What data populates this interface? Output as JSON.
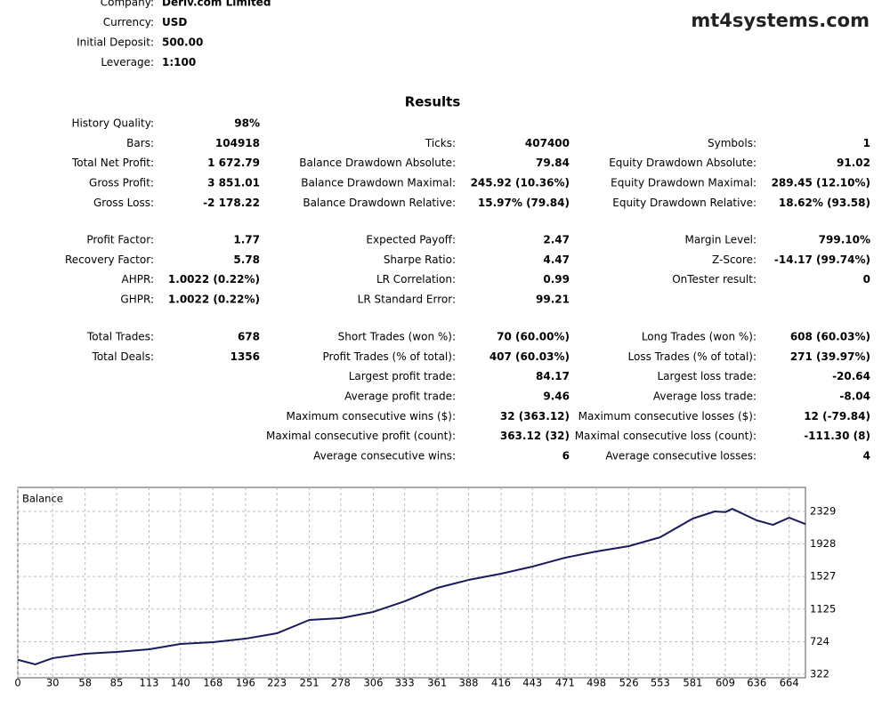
{
  "watermark": "mt4systems.com",
  "header": {
    "fields": [
      {
        "label": "Company:",
        "value": "Deriv.com Limited"
      },
      {
        "label": "Currency:",
        "value": "USD"
      },
      {
        "label": "Initial Deposit:",
        "value": "500.00"
      },
      {
        "label": "Leverage:",
        "value": "1:100"
      }
    ]
  },
  "results": {
    "title": "Results",
    "sections": [
      [
        [
          {
            "label": "History Quality:",
            "value": "98%"
          },
          null,
          null
        ],
        [
          {
            "label": "Bars:",
            "value": "104918"
          },
          {
            "label": "Ticks:",
            "value": "407400"
          },
          {
            "label": "Symbols:",
            "value": "1"
          }
        ],
        [
          {
            "label": "Total Net Profit:",
            "value": "1 672.79"
          },
          {
            "label": "Balance Drawdown Absolute:",
            "value": "79.84"
          },
          {
            "label": "Equity Drawdown Absolute:",
            "value": "91.02"
          }
        ],
        [
          {
            "label": "Gross Profit:",
            "value": "3 851.01"
          },
          {
            "label": "Balance Drawdown Maximal:",
            "value": "245.92 (10.36%)"
          },
          {
            "label": "Equity Drawdown Maximal:",
            "value": "289.45 (12.10%)"
          }
        ],
        [
          {
            "label": "Gross Loss:",
            "value": "-2 178.22"
          },
          {
            "label": "Balance Drawdown Relative:",
            "value": "15.97% (79.84)"
          },
          {
            "label": "Equity Drawdown Relative:",
            "value": "18.62% (93.58)"
          }
        ]
      ],
      [
        [
          {
            "label": "Profit Factor:",
            "value": "1.77"
          },
          {
            "label": "Expected Payoff:",
            "value": "2.47"
          },
          {
            "label": "Margin Level:",
            "value": "799.10%"
          }
        ],
        [
          {
            "label": "Recovery Factor:",
            "value": "5.78"
          },
          {
            "label": "Sharpe Ratio:",
            "value": "4.47"
          },
          {
            "label": "Z-Score:",
            "value": "-14.17 (99.74%)"
          }
        ],
        [
          {
            "label": "AHPR:",
            "value": "1.0022 (0.22%)"
          },
          {
            "label": "LR Correlation:",
            "value": "0.99"
          },
          {
            "label": "OnTester result:",
            "value": "0"
          }
        ],
        [
          {
            "label": "GHPR:",
            "value": "1.0022 (0.22%)"
          },
          {
            "label": "LR Standard Error:",
            "value": "99.21"
          },
          null
        ]
      ],
      [
        [
          {
            "label": "Total Trades:",
            "value": "678"
          },
          {
            "label": "Short Trades (won %):",
            "value": "70 (60.00%)"
          },
          {
            "label": "Long Trades (won %):",
            "value": "608 (60.03%)"
          }
        ],
        [
          {
            "label": "Total Deals:",
            "value": "1356"
          },
          {
            "label": "Profit Trades (% of total):",
            "value": "407 (60.03%)"
          },
          {
            "label": "Loss Trades (% of total):",
            "value": "271 (39.97%)"
          }
        ],
        [
          null,
          {
            "label": "Largest profit trade:",
            "value": "84.17"
          },
          {
            "label": "Largest loss trade:",
            "value": "-20.64"
          }
        ],
        [
          null,
          {
            "label": "Average profit trade:",
            "value": "9.46"
          },
          {
            "label": "Average loss trade:",
            "value": "-8.04"
          }
        ],
        [
          null,
          {
            "label": "Maximum consecutive wins ($):",
            "value": "32 (363.12)"
          },
          {
            "label": "Maximum consecutive losses ($):",
            "value": "12 (-79.84)"
          }
        ],
        [
          null,
          {
            "label": "Maximal consecutive profit (count):",
            "value": "363.12 (32)"
          },
          {
            "label": "Maximal consecutive loss (count):",
            "value": "-111.30 (8)"
          }
        ],
        [
          null,
          {
            "label": "Average consecutive wins:",
            "value": "6"
          },
          {
            "label": "Average consecutive losses:",
            "value": "4"
          }
        ]
      ]
    ]
  },
  "chart_data": {
    "type": "line",
    "title": "Balance",
    "x": [
      0,
      15,
      30,
      58,
      85,
      113,
      140,
      168,
      196,
      223,
      251,
      278,
      306,
      333,
      361,
      388,
      416,
      443,
      471,
      498,
      526,
      553,
      581,
      600,
      609,
      615,
      636,
      650,
      664,
      678
    ],
    "series": [
      {
        "name": "Balance",
        "color": "#1a1a5e",
        "values": [
          500,
          443,
          520,
          574,
          596,
          629,
          695,
          717,
          760,
          826,
          991,
          1013,
          1090,
          1221,
          1386,
          1484,
          1561,
          1649,
          1758,
          1835,
          1901,
          2011,
          2241,
          2329,
          2320,
          2361,
          2219,
          2164,
          2252,
          2173
        ]
      }
    ],
    "xlim": [
      0,
      678
    ],
    "ylim": [
      278,
      2625
    ],
    "xticks": [
      0,
      30,
      58,
      85,
      113,
      140,
      168,
      196,
      223,
      251,
      278,
      306,
      333,
      361,
      388,
      416,
      443,
      471,
      498,
      526,
      553,
      581,
      609,
      636,
      664
    ],
    "yticks": [
      322,
      724,
      1125,
      1527,
      1928,
      2329
    ],
    "grid": true
  }
}
